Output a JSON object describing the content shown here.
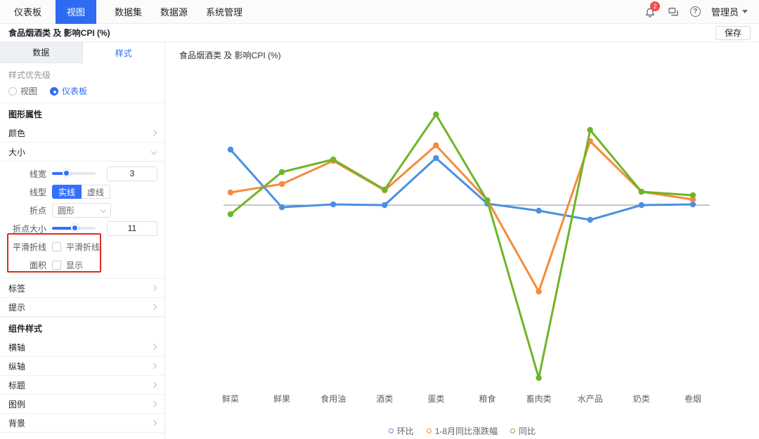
{
  "colors": {
    "accent": "#2c6bf2",
    "control_accent": "#3370ff",
    "badge": "#f54a45",
    "annotation": "#e02a1d",
    "axis_line": "#8a8f99",
    "series_blue": "#4a90e2",
    "series_orange": "#f58b3b",
    "series_green": "#70b429"
  },
  "nav": {
    "items": [
      {
        "label": "仪表板",
        "active": false
      },
      {
        "label": "视图",
        "active": true
      },
      {
        "label": "数据集",
        "active": false
      },
      {
        "label": "数据源",
        "active": false
      },
      {
        "label": "系统管理",
        "active": false
      }
    ],
    "notification_count": "2",
    "help_glyph": "?",
    "user": "管理员"
  },
  "toolbar": {
    "title": "食品烟酒类 及 影响CPI (%)",
    "save_label": "保存"
  },
  "panel": {
    "tabs": {
      "data": "数据",
      "style": "样式"
    },
    "style_priority": {
      "label": "样式优先级",
      "options": [
        {
          "label": "视图",
          "selected": false
        },
        {
          "label": "仪表板",
          "selected": true
        }
      ]
    },
    "graph_attrs_header": "图形属性",
    "rows": {
      "color": "颜色",
      "size": "大小",
      "label": "标签",
      "tooltip": "提示"
    },
    "size_section": {
      "line_width_label": "线宽",
      "line_width_value": "3",
      "line_type_label": "线型",
      "solid_label": "实线",
      "dashed_label": "虚线",
      "point_label": "折点",
      "point_value": "圆形",
      "point_size_label": "折点大小",
      "point_size_value": "11",
      "smooth_label": "平滑折线",
      "smooth_checkbox_label": "平滑折线",
      "area_label": "面积",
      "area_checkbox_label": "显示"
    },
    "component_style_header": "组件样式",
    "component_rows": [
      "横轴",
      "纵轴",
      "标题",
      "图例",
      "背景"
    ]
  },
  "chart": {
    "title": "食品烟酒类 及 影响CPI (%)"
  },
  "chart_data": {
    "type": "line",
    "title": "食品烟酒类 及 影响CPI (%)",
    "categories": [
      "鲜菜",
      "鲜果",
      "食用油",
      "酒类",
      "蛋类",
      "粮食",
      "畜肉类",
      "水产品",
      "奶类",
      "卷烟"
    ],
    "series": [
      {
        "name": "环比",
        "color": "#4a90e2",
        "values": [
          7.9,
          -0.3,
          0.1,
          0,
          6.7,
          0.2,
          -0.8,
          -2.1,
          0,
          0.1
        ]
      },
      {
        "name": "1-8月同比涨跌幅",
        "color": "#f58b3b",
        "values": [
          1.8,
          3.0,
          6.3,
          2.1,
          8.5,
          0.7,
          -12.3,
          9.1,
          1.9,
          0.8
        ]
      },
      {
        "name": "同比",
        "color": "#70b429",
        "values": [
          -1.3,
          4.7,
          6.5,
          2.2,
          12.9,
          0.6,
          -24.6,
          10.7,
          1.9,
          1.4
        ]
      }
    ],
    "ylim": [
      -28,
      16
    ],
    "xlabel": "",
    "ylabel": "",
    "grid": false,
    "legend_position": "bottom"
  }
}
